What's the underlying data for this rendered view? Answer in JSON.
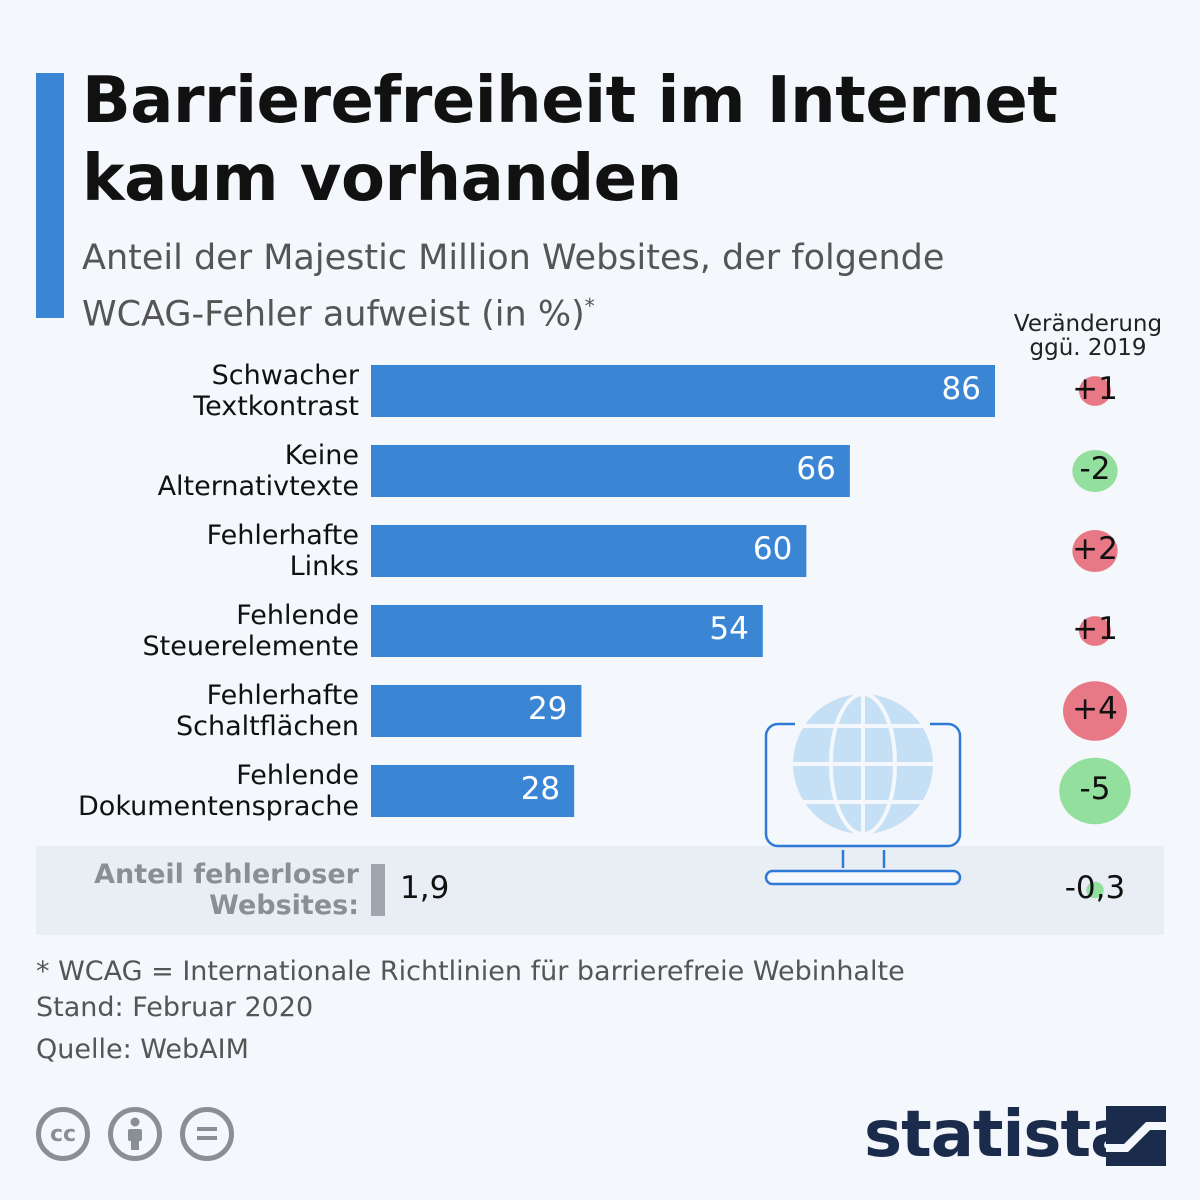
{
  "header": {
    "title_line1": "Barrierefreiheit im Internet",
    "title_line2": "kaum vorhanden",
    "subtitle_line1": "Anteil der Majestic Million Websites, der folgende",
    "subtitle_line2": "WCAG-Fehler aufweist (in %)",
    "subtitle_mark": "*"
  },
  "change_header": {
    "line1": "Veränderung",
    "line2": "ggü. 2019"
  },
  "chart_data": {
    "type": "bar",
    "orientation": "horizontal",
    "categories": [
      [
        "Schwacher",
        "Textkontrast"
      ],
      [
        "Keine",
        "Alternativtexte"
      ],
      [
        "Fehlerhafte",
        "Links"
      ],
      [
        "Fehlende",
        "Steuerelemente"
      ],
      [
        "Fehlerhafte",
        "Schaltflächen"
      ],
      [
        "Fehlende",
        "Dokumentensprache"
      ]
    ],
    "values": [
      86,
      66,
      60,
      54,
      29,
      28
    ],
    "value_labels": [
      "86",
      "66",
      "60",
      "54",
      "29",
      "28"
    ],
    "changes": [
      1,
      -2,
      2,
      1,
      4,
      -5
    ],
    "change_labels": [
      "+1",
      "-2",
      "+2",
      "+1",
      "+4",
      "-5"
    ],
    "extra_row": {
      "label": [
        "Anteil fehlerloser",
        "Websites:"
      ],
      "value": 1.9,
      "value_label": "1,9",
      "change": -0.3,
      "change_label": "-0,3"
    },
    "xlim": [
      0,
      100
    ],
    "bar_color": "#3a86d4",
    "extra_bar_color": "#a0a6ad",
    "increase_color": "#e87885",
    "decrease_color": "#93df9e"
  },
  "footer": {
    "note": "* WCAG = Internationale Richtlinien für barrierefreie Webinhalte",
    "date": "Stand: Februar 2020",
    "source": "Quelle: WebAIM",
    "license_icons": [
      "cc-icon",
      "attribution-icon",
      "no-derivatives-icon"
    ],
    "license_cc": "cc",
    "logo": "statista"
  }
}
